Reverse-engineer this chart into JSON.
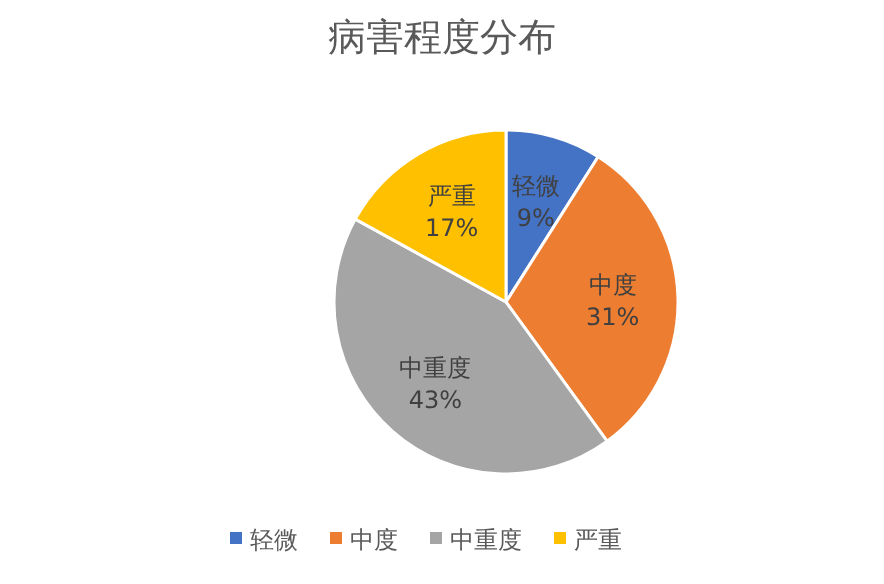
{
  "chart_data": {
    "type": "pie",
    "title": "病害程度分布",
    "categories": [
      "轻微",
      "中度",
      "中重度",
      "严重"
    ],
    "values": [
      9,
      31,
      43,
      17
    ],
    "colors": [
      "#4472c4",
      "#ed7d31",
      "#a5a5a5",
      "#ffc000"
    ],
    "value_labels": [
      "9%",
      "31%",
      "43%",
      "17%"
    ],
    "legend": "bottom"
  }
}
